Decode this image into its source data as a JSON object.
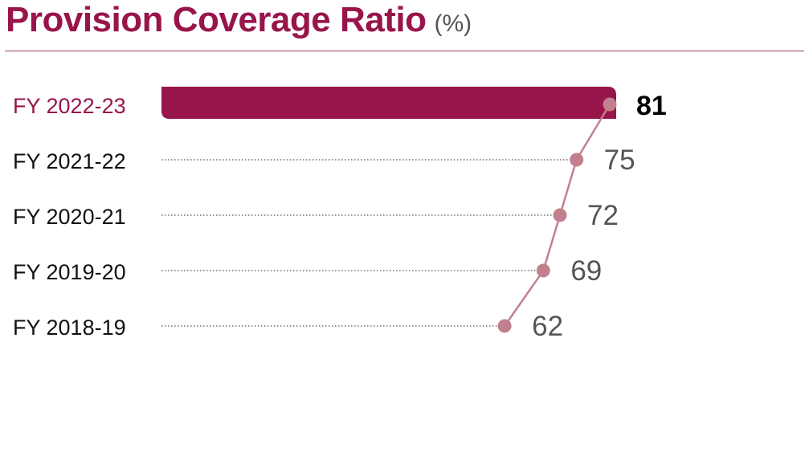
{
  "title": "Provision Coverage Ratio",
  "unit": "(%)",
  "colors": {
    "title": "#98154b",
    "highlight_bar": "#98154b",
    "line": "#c2808f",
    "highlight_label": "#000000",
    "label": "#555555",
    "category": "#111111",
    "dotted": "#555555"
  },
  "chart_data": {
    "type": "bar",
    "orientation": "horizontal",
    "categories": [
      "FY 2022-23",
      "FY 2021-22",
      "FY 2020-21",
      "FY 2019-20",
      "FY 2018-19"
    ],
    "values": [
      81,
      75,
      72,
      69,
      62
    ],
    "highlight_index": 0,
    "data_labels": [
      "81",
      "75",
      "72",
      "69",
      "62"
    ],
    "title": "Provision Coverage Ratio",
    "unit": "(%)",
    "grid": false,
    "legend": "none"
  }
}
